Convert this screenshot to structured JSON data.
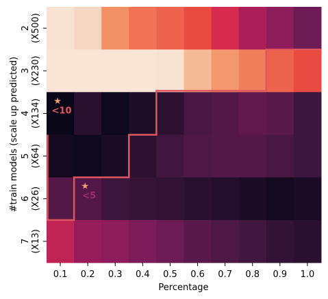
{
  "chart_data": {
    "type": "heatmap",
    "xlabel": "Percentage",
    "ylabel": "#train models (scale up predicted)",
    "x_categories": [
      "0.1",
      "0.2",
      "0.3",
      "0.4",
      "0.5",
      "0.6",
      "0.7",
      "0.8",
      "0.9",
      "1.0"
    ],
    "y_categories": [
      [
        "2",
        "(X500)"
      ],
      [
        "3",
        "(X230)"
      ],
      [
        "4",
        "(X134)"
      ],
      [
        "5",
        "(X64)"
      ],
      [
        "6",
        "(X26)"
      ],
      [
        "7",
        "(X13)"
      ]
    ],
    "values": [
      [
        0.04,
        0.1,
        0.3,
        0.4,
        0.44,
        0.5,
        0.6,
        0.7,
        0.76,
        0.82
      ],
      [
        0.03,
        0.03,
        0.03,
        0.03,
        0.04,
        0.18,
        0.28,
        0.36,
        0.44,
        0.5
      ],
      [
        1.0,
        0.94,
        0.99,
        0.96,
        0.93,
        0.88,
        0.86,
        0.84,
        0.85,
        0.9
      ],
      [
        0.98,
        0.99,
        0.97,
        0.93,
        0.89,
        0.87,
        0.86,
        0.86,
        0.88,
        0.9
      ],
      [
        0.86,
        0.86,
        0.9,
        0.91,
        0.92,
        0.94,
        0.95,
        0.97,
        0.98,
        0.97
      ],
      [
        0.65,
        0.74,
        0.76,
        0.79,
        0.82,
        0.85,
        0.87,
        0.89,
        0.92,
        0.94
      ]
    ],
    "colormap": "rocket_r",
    "boundary_color": "#e05560",
    "boundary_steps": [
      1,
      3,
      4,
      8
    ],
    "boundary_bottom_row": 5,
    "annotations": [
      {
        "text": "<10",
        "marker": "★",
        "col": 0,
        "row": 2,
        "color": "#e05560"
      },
      {
        "text": "<5",
        "marker": "★",
        "col": 1,
        "row": 4,
        "color": "#a0306a"
      }
    ]
  }
}
